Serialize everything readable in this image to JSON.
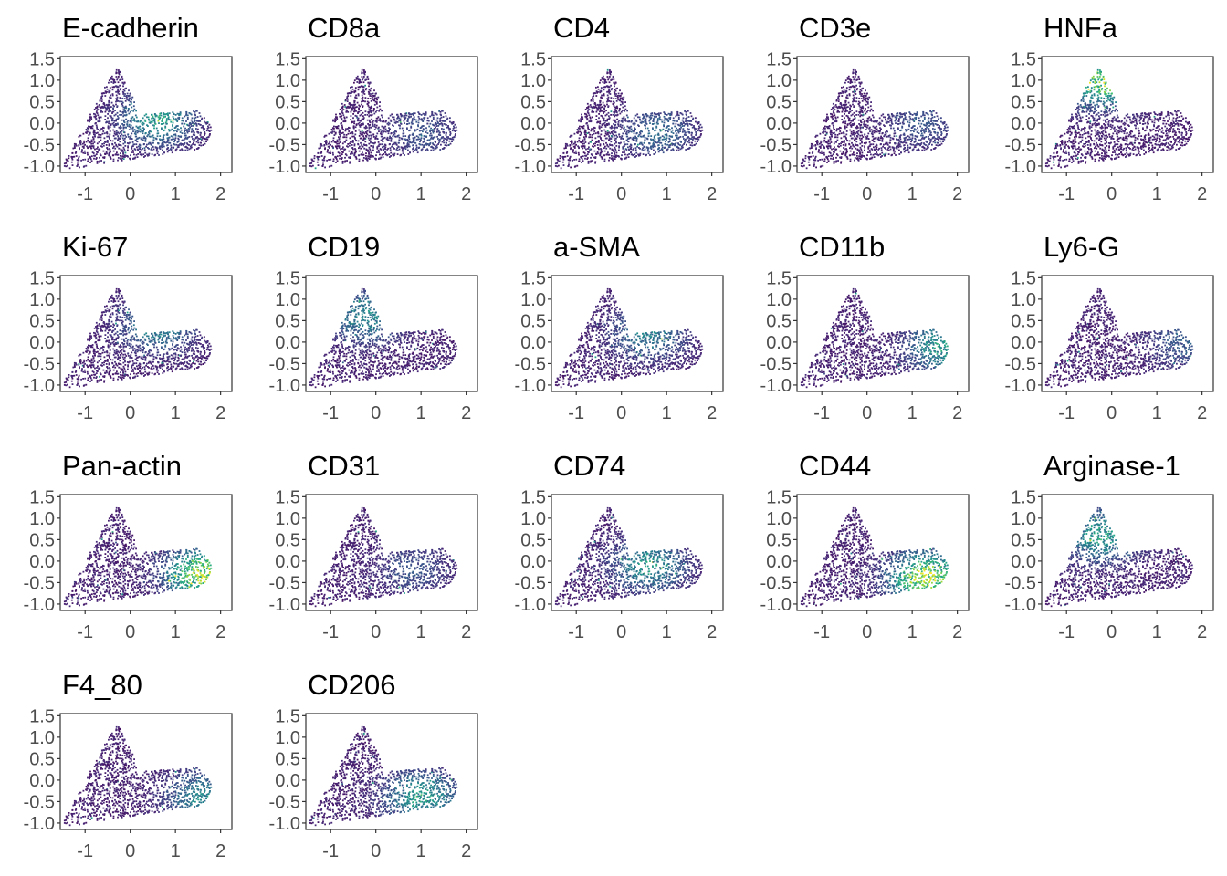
{
  "chart_data": {
    "type": "scatter",
    "layout": "facet grid, 5 columns, 4 rows",
    "grid": false,
    "xlim": [
      -1.55,
      2.25
    ],
    "ylim": [
      -1.15,
      1.55
    ],
    "x_ticks": [
      "-1",
      "0",
      "1",
      "2"
    ],
    "y_ticks": [
      "1.5",
      "1.0",
      "0.5",
      "0.0",
      "-0.5",
      "-1.0"
    ],
    "x_tick_values": [
      -1,
      0,
      1,
      2
    ],
    "y_tick_values": [
      1.5,
      1.0,
      0.5,
      0.0,
      -0.5,
      -1.0
    ],
    "color_scale": "viridis",
    "colors": {
      "low": "#440154",
      "mid": "#21908c",
      "high": "#fde725"
    },
    "point_cloud": {
      "shape": "triangular mass rising to a peak near (-0.3, 1.35), with a lobe extending right to about x = 2 around y = -0.2",
      "x_range": [
        -1.5,
        2.0
      ],
      "y_range": [
        -1.05,
        1.4
      ],
      "peak": [
        -0.3,
        1.35
      ]
    },
    "panels": [
      {
        "title": "E-cadherin",
        "high_region": [
          0.6,
          0.1
        ],
        "intensity": 0.55
      },
      {
        "title": "CD8a",
        "high_region": [
          1.0,
          -0.2
        ],
        "intensity": 0.2
      },
      {
        "title": "CD4",
        "high_region": [
          0.8,
          -0.2
        ],
        "intensity": 0.3
      },
      {
        "title": "CD3e",
        "high_region": [
          1.2,
          0.0
        ],
        "intensity": 0.2
      },
      {
        "title": "HNFa",
        "high_region": [
          -0.2,
          1.0
        ],
        "intensity": 0.85
      },
      {
        "title": "Ki-67",
        "high_region": [
          0.6,
          0.4
        ],
        "intensity": 0.45
      },
      {
        "title": "CD19",
        "high_region": [
          -0.2,
          0.6
        ],
        "intensity": 0.45
      },
      {
        "title": "a-SMA",
        "high_region": [
          0.6,
          0.2
        ],
        "intensity": 0.4
      },
      {
        "title": "CD11b",
        "high_region": [
          1.7,
          -0.1
        ],
        "intensity": 0.55
      },
      {
        "title": "Ly6-G",
        "high_region": [
          1.6,
          0.0
        ],
        "intensity": 0.25
      },
      {
        "title": "Pan-actin",
        "high_region": [
          1.6,
          -0.3
        ],
        "intensity": 0.9
      },
      {
        "title": "CD31",
        "high_region": [
          0.8,
          -0.2
        ],
        "intensity": 0.2
      },
      {
        "title": "CD74",
        "high_region": [
          0.6,
          -0.1
        ],
        "intensity": 0.5
      },
      {
        "title": "CD44",
        "high_region": [
          1.3,
          -0.4
        ],
        "intensity": 0.95
      },
      {
        "title": "Arginase-1",
        "high_region": [
          -0.2,
          0.6
        ],
        "intensity": 0.55
      },
      {
        "title": "F4_80",
        "high_region": [
          1.6,
          -0.4
        ],
        "intensity": 0.45
      },
      {
        "title": "CD206",
        "high_region": [
          1.0,
          -0.4
        ],
        "intensity": 0.55
      }
    ]
  }
}
